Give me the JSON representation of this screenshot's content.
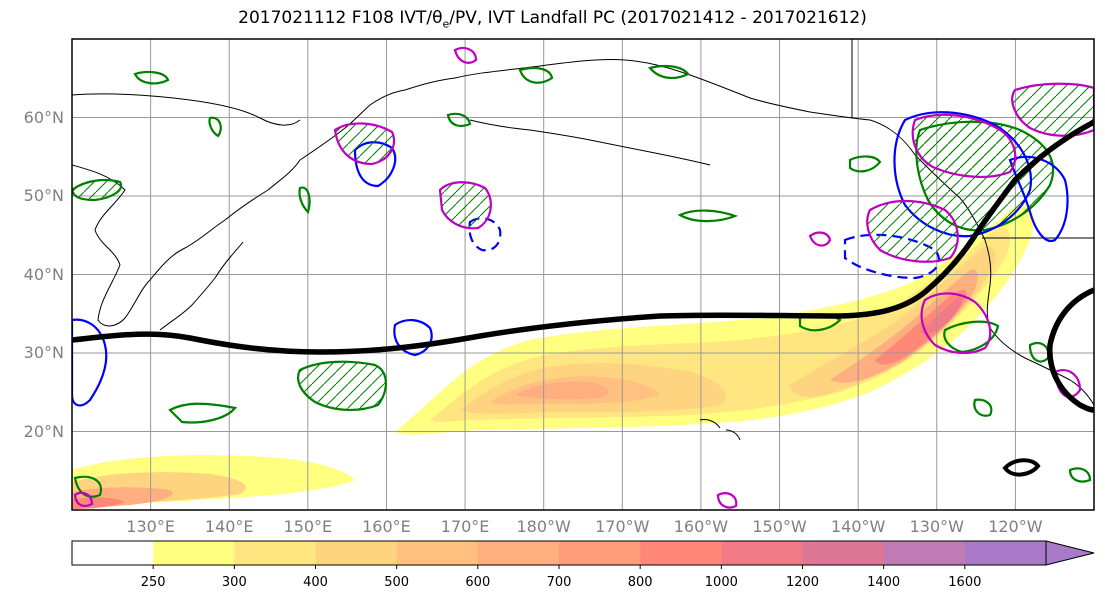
{
  "title": "2017021112 F108 IVT/θe/PV, IVT Landfall PC (2017021412 - 2017021612)",
  "map": {
    "lat_labels": [
      {
        "text": "60°N",
        "lat": 60
      },
      {
        "text": "50°N",
        "lat": 50
      },
      {
        "text": "40°N",
        "lat": 40
      },
      {
        "text": "30°N",
        "lat": 30
      },
      {
        "text": "20°N",
        "lat": 20
      }
    ],
    "lon_labels": [
      {
        "text": "130°E",
        "lon": 130
      },
      {
        "text": "140°E",
        "lon": 140
      },
      {
        "text": "150°E",
        "lon": 150
      },
      {
        "text": "160°E",
        "lon": 160
      },
      {
        "text": "170°E",
        "lon": 170
      },
      {
        "text": "180°W",
        "lon": 180
      },
      {
        "text": "170°W",
        "lon": 190
      },
      {
        "text": "160°W",
        "lon": 200
      },
      {
        "text": "150°W",
        "lon": 210
      },
      {
        "text": "140°W",
        "lon": 220
      },
      {
        "text": "130°W",
        "lon": 230
      },
      {
        "text": "120°W",
        "lon": 240
      }
    ],
    "extent": {
      "lon_min": 120,
      "lon_max": 250,
      "lat_min": 10,
      "lat_max": 70
    },
    "ivt_colors": [
      "#ffffff",
      "#ffff80",
      "#ffe680",
      "#ffd480",
      "#ffc080",
      "#ffae80",
      "#ff9c7a",
      "#ff8878",
      "#f07a86",
      "#dc7896",
      "#c07ab4",
      "#a87ac8"
    ],
    "pv_positive_color": "#008000",
    "theta_e_color": "#0000ff",
    "pc_color": "#c000c0",
    "landfall_track_color": "#000000"
  },
  "colorbar": {
    "ticks": [
      "250",
      "300",
      "400",
      "500",
      "600",
      "700",
      "800",
      "1000",
      "1200",
      "1400",
      "1600"
    ]
  }
}
